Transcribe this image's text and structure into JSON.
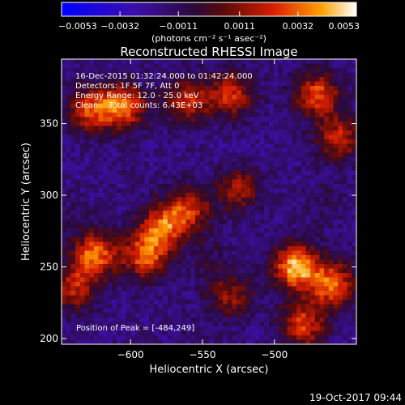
{
  "colorbar": {
    "tick_labels": [
      "−0.0053",
      "−0.0032",
      "−0.0011",
      "0.0011",
      "0.0032",
      "0.0053"
    ],
    "tick_values": [
      -0.0053,
      -0.0032,
      -0.0011,
      0.0011,
      0.0032,
      0.0053
    ],
    "range": [
      -0.0053,
      0.0053
    ],
    "units_label": "(photons cm⁻² s⁻¹ asec⁻²)"
  },
  "chart_data": {
    "type": "heatmap",
    "title": "Reconstructed RHESSI Image",
    "xlabel": "Heliocentric X (arcsec)",
    "ylabel": "Heliocentric Y (arcsec)",
    "xlim": [
      -648,
      -443
    ],
    "ylim": [
      196,
      395
    ],
    "x_ticks": [
      -600,
      -550,
      -500
    ],
    "x_tick_labels": [
      "−600",
      "−550",
      "−500"
    ],
    "y_ticks": [
      200,
      250,
      300,
      350
    ],
    "y_tick_labels": [
      "200",
      "250",
      "300",
      "350"
    ],
    "colormap": "blue-purple-red-yellow-white",
    "annotations": [
      "16-Dec-2015 01:32:24.000 to 01:42:24.000",
      "Detectors: 1F 5F 7F, Att 0",
      "Energy Range: 12.0 - 25.0 keV",
      "Clean    Total counts: 6.43E+03"
    ],
    "peak_label": "Position of Peak = [-484,249]",
    "peak": [
      -484,
      249
    ],
    "bright_regions": [
      {
        "x": -578,
        "y": 278,
        "level": 0.0028
      },
      {
        "x": -590,
        "y": 258,
        "level": 0.003
      },
      {
        "x": -560,
        "y": 290,
        "level": 0.0022
      },
      {
        "x": -605,
        "y": 362,
        "level": 0.0034
      },
      {
        "x": -628,
        "y": 360,
        "level": 0.0026
      },
      {
        "x": -560,
        "y": 366,
        "level": 0.002
      },
      {
        "x": -530,
        "y": 370,
        "level": 0.0022
      },
      {
        "x": -470,
        "y": 370,
        "level": 0.0028
      },
      {
        "x": -455,
        "y": 340,
        "level": 0.002
      },
      {
        "x": -485,
        "y": 250,
        "level": 0.0046
      },
      {
        "x": -460,
        "y": 238,
        "level": 0.0032
      },
      {
        "x": -625,
        "y": 258,
        "level": 0.0034
      },
      {
        "x": -640,
        "y": 235,
        "level": 0.0018
      },
      {
        "x": -480,
        "y": 210,
        "level": 0.0026
      },
      {
        "x": -530,
        "y": 230,
        "level": 0.0012
      },
      {
        "x": -525,
        "y": 305,
        "level": 0.0016
      }
    ],
    "dark_regions": [
      {
        "x": -528,
        "y": 328,
        "level": -0.0022
      },
      {
        "x": -600,
        "y": 318,
        "level": -0.0016
      },
      {
        "x": -560,
        "y": 205,
        "level": -0.0014
      },
      {
        "x": -640,
        "y": 285,
        "level": -0.0012
      },
      {
        "x": -465,
        "y": 295,
        "level": -0.0012
      },
      {
        "x": -545,
        "y": 255,
        "level": -0.0008
      }
    ]
  },
  "timestamp": "19-Oct-2017 09:44"
}
